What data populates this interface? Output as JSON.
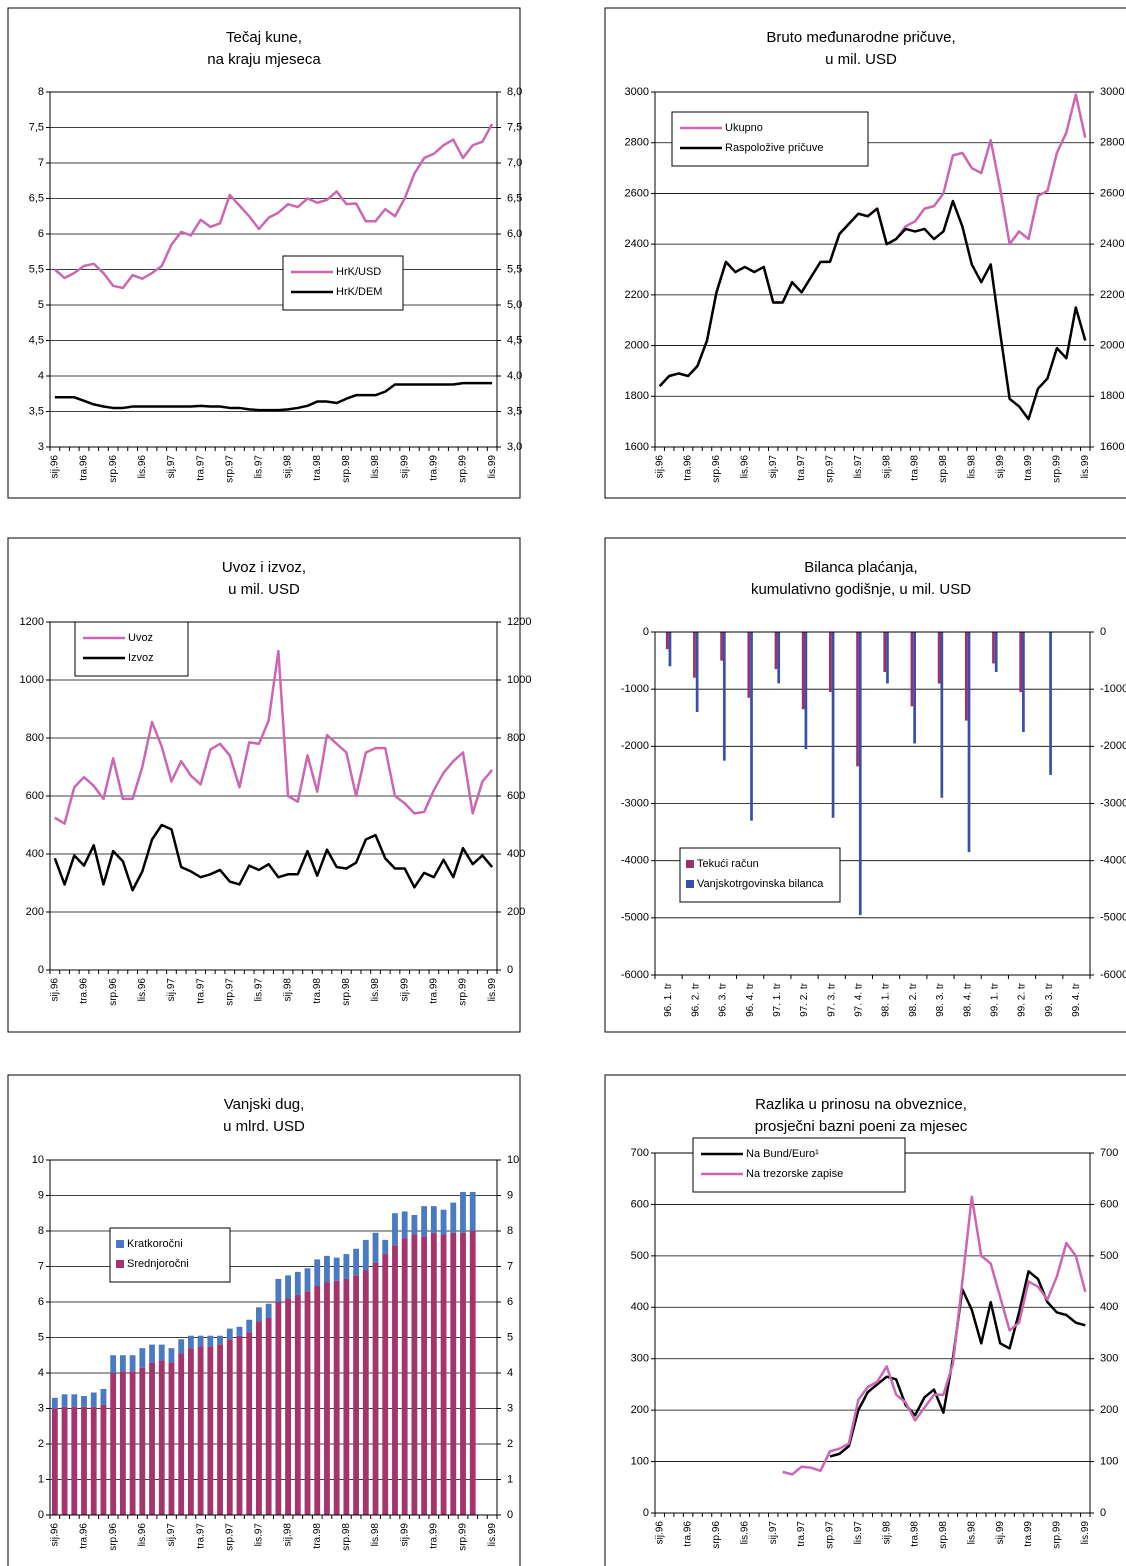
{
  "chart_data": [
    {
      "type": "line",
      "title": [
        "Tečaj kune,",
        "na kraju mjeseca"
      ],
      "categories": [
        "sij.96",
        null,
        null,
        "tra.96",
        null,
        null,
        "srp.96",
        null,
        null,
        "lis.96",
        null,
        null,
        "sij.97",
        null,
        null,
        "tra.97",
        null,
        null,
        "srp.97",
        null,
        null,
        "lis.97",
        null,
        null,
        "sij.98",
        null,
        null,
        "tra.98",
        null,
        null,
        "srp.98",
        null,
        null,
        "lis.98",
        null,
        null,
        "sij.99",
        null,
        null,
        "tra.99",
        null,
        null,
        "srp.99",
        null,
        null,
        "lis.99"
      ],
      "series": [
        {
          "name": "HrK/USD",
          "color": "#cc66b3",
          "values": [
            5.5,
            5.38,
            5.45,
            5.55,
            5.58,
            5.45,
            5.27,
            5.24,
            5.42,
            5.37,
            5.45,
            5.55,
            5.85,
            6.03,
            5.98,
            6.2,
            6.1,
            6.15,
            6.55,
            6.4,
            6.25,
            6.07,
            6.23,
            6.3,
            6.42,
            6.38,
            6.5,
            6.44,
            6.48,
            6.6,
            6.42,
            6.43,
            6.18,
            6.18,
            6.35,
            6.25,
            6.5,
            6.85,
            7.07,
            7.13,
            7.25,
            7.33,
            7.07,
            7.25,
            7.3,
            7.55
          ]
        },
        {
          "name": "HrK/DEM",
          "color": "#000000",
          "values": [
            3.7,
            3.7,
            3.7,
            3.65,
            3.6,
            3.57,
            3.55,
            3.55,
            3.57,
            3.57,
            3.57,
            3.57,
            3.57,
            3.57,
            3.57,
            3.58,
            3.57,
            3.57,
            3.55,
            3.55,
            3.53,
            3.52,
            3.52,
            3.52,
            3.53,
            3.55,
            3.58,
            3.64,
            3.64,
            3.62,
            3.68,
            3.73,
            3.73,
            3.73,
            3.78,
            3.88,
            3.88,
            3.88,
            3.88,
            3.88,
            3.88,
            3.88,
            3.9,
            3.9,
            3.9,
            3.9
          ]
        }
      ],
      "ylim": [
        3,
        8
      ],
      "yticks": [
        3,
        {
          "value": 3.5,
          "label": "3,5"
        },
        4,
        {
          "value": 4.5,
          "label": "4,5"
        },
        5,
        {
          "value": 5.5,
          "label": "5,5"
        },
        6,
        {
          "value": 6.5,
          "label": "6,5"
        },
        7,
        {
          "value": 7.5,
          "label": "7,5"
        },
        8
      ],
      "y2lim": [
        3,
        8
      ],
      "y2ticks": [
        {
          "value": 3,
          "label": "3,0"
        },
        {
          "value": 3.5,
          "label": "3,5"
        },
        {
          "value": 4,
          "label": "4,0"
        },
        {
          "value": 4.5,
          "label": "4,5"
        },
        {
          "value": 5,
          "label": "5,0"
        },
        {
          "value": 5.5,
          "label": "5,5"
        },
        {
          "value": 6,
          "label": "6,0"
        },
        {
          "value": 6.5,
          "label": "6,5"
        },
        {
          "value": 7,
          "label": "7,0"
        },
        {
          "value": 7.5,
          "label": "7,5"
        },
        {
          "value": 8,
          "label": "8,0"
        }
      ],
      "grid": true
    },
    {
      "type": "line",
      "title": [
        "Bruto međunarodne pričuve,",
        "u mil. USD"
      ],
      "categories": [
        "sij.96",
        null,
        null,
        "tra.96",
        null,
        null,
        "srp.96",
        null,
        null,
        "lis.96",
        null,
        null,
        "sij.97",
        null,
        null,
        "tra.97",
        null,
        null,
        "srp.97",
        null,
        null,
        "lis.97",
        null,
        null,
        "sij.98",
        null,
        null,
        "tra.98",
        null,
        null,
        "srp.98",
        null,
        null,
        "lis.98",
        null,
        null,
        "sij.99",
        null,
        null,
        "tra.99",
        null,
        null,
        "srp.99",
        null,
        null,
        "lis.99"
      ],
      "series": [
        {
          "name": "Ukupno",
          "color": "#cc66b3",
          "values": [
            1840,
            1880,
            1890,
            1880,
            1920,
            2020,
            2210,
            2330,
            2290,
            2310,
            2290,
            2310,
            2170,
            2170,
            2250,
            2210,
            2270,
            2330,
            2330,
            2440,
            2480,
            2520,
            2510,
            2540,
            2400,
            2420,
            2470,
            2490,
            2540,
            2550,
            2600,
            2750,
            2760,
            2700,
            2680,
            2810,
            2620,
            2400,
            2450,
            2420,
            2590,
            2610,
            2760,
            2840,
            2990,
            2820
          ]
        },
        {
          "name": "Raspoložive pričuve",
          "color": "#000000",
          "values": [
            1840,
            1880,
            1890,
            1880,
            1920,
            2020,
            2210,
            2330,
            2290,
            2310,
            2290,
            2310,
            2170,
            2170,
            2250,
            2210,
            2270,
            2330,
            2330,
            2440,
            2480,
            2520,
            2510,
            2540,
            2400,
            2420,
            2460,
            2450,
            2460,
            2420,
            2450,
            2570,
            2470,
            2320,
            2250,
            2320,
            2050,
            1790,
            1760,
            1710,
            1830,
            1870,
            1990,
            1950,
            2150,
            2020
          ]
        }
      ],
      "ylim": [
        1600,
        3000
      ],
      "yticks": [
        1600,
        1800,
        2000,
        2200,
        2400,
        2600,
        2800,
        3000
      ],
      "y2lim": [
        1600,
        3000
      ],
      "y2ticks": [
        1600,
        1800,
        2000,
        2200,
        2400,
        2600,
        2800,
        3000
      ],
      "grid": true
    },
    {
      "type": "line",
      "title": [
        "Uvoz i izvoz,",
        "u mil. USD"
      ],
      "categories": [
        "sij.96",
        null,
        null,
        "tra.96",
        null,
        null,
        "srp.96",
        null,
        null,
        "lis.96",
        null,
        null,
        "sij.97",
        null,
        null,
        "tra.97",
        null,
        null,
        "srp.97",
        null,
        null,
        "lis.97",
        null,
        null,
        "sij.98",
        null,
        null,
        "tra.98",
        null,
        null,
        "srp.98",
        null,
        null,
        "lis.98",
        null,
        null,
        "sij.99",
        null,
        null,
        "tra.99",
        null,
        null,
        "srp.99",
        null,
        null,
        "lis.99"
      ],
      "series": [
        {
          "name": "Uvoz",
          "color": "#cc66b3",
          "values": [
            525,
            505,
            630,
            665,
            635,
            590,
            730,
            590,
            590,
            700,
            855,
            770,
            650,
            720,
            670,
            640,
            760,
            780,
            740,
            630,
            785,
            780,
            860,
            1100,
            600,
            580,
            740,
            615,
            810,
            780,
            750,
            600,
            750,
            765,
            765,
            600,
            575,
            540,
            545,
            620,
            680,
            720,
            750,
            540,
            650,
            690
          ]
        },
        {
          "name": "Izvoz",
          "color": "#000000",
          "values": [
            385,
            295,
            395,
            360,
            430,
            295,
            410,
            375,
            275,
            340,
            450,
            500,
            485,
            355,
            340,
            320,
            330,
            345,
            305,
            295,
            360,
            345,
            365,
            320,
            330,
            330,
            410,
            325,
            415,
            355,
            350,
            370,
            450,
            465,
            385,
            350,
            350,
            285,
            335,
            320,
            380,
            320,
            420,
            365,
            395,
            355
          ]
        }
      ],
      "ylim": [
        0,
        1200
      ],
      "yticks": [
        0,
        200,
        400,
        600,
        800,
        1000,
        1200
      ],
      "y2lim": [
        0,
        1200
      ],
      "y2ticks": [
        0,
        200,
        400,
        600,
        800,
        1000,
        1200
      ],
      "grid": true
    },
    {
      "type": "bar",
      "title": [
        "Bilanca plaćanja,",
        "kumulativno godišnje, u mil. USD"
      ],
      "categories": [
        "96. 1. tr",
        "96. 2. tr",
        "96. 3. tr",
        "96. 4. tr",
        "97. 1. tr",
        "97. 2. tr",
        "97. 3. tr",
        "97. 4. tr",
        "98. 1. tr",
        "98. 2. tr",
        "98. 3. tr",
        "98. 4. tr",
        "99. 1. tr",
        "99. 2. tr",
        "99. 3. tr",
        "99. 4. tr"
      ],
      "series": [
        {
          "name": "Tekući račun",
          "color": "#9c2f6e",
          "values": [
            -300,
            -800,
            -500,
            -1150,
            -650,
            -1350,
            -1050,
            -2350,
            -700,
            -1300,
            -900,
            -1550,
            -550,
            -1050,
            null,
            null
          ]
        },
        {
          "name": "Vanjskotrgovinska bilanca",
          "color": "#3a4fa8",
          "values": [
            -600,
            -1400,
            -2250,
            -3300,
            -900,
            -2050,
            -3250,
            -4950,
            -900,
            -1950,
            -2900,
            -3850,
            -700,
            -1750,
            -2500,
            null
          ]
        }
      ],
      "ylim": [
        -6000,
        0
      ],
      "yticks": [
        -6000,
        -5000,
        -4000,
        -3000,
        -2000,
        -1000,
        0
      ],
      "y2lim": [
        -6000,
        0
      ],
      "y2ticks": [
        -6000,
        -5000,
        -4000,
        -3000,
        -2000,
        -1000,
        0
      ],
      "grid": true
    },
    {
      "type": "bar",
      "stacked": true,
      "title": [
        "Vanjski dug,",
        "u mlrd. USD"
      ],
      "categories": [
        "sij.96",
        null,
        null,
        "tra.96",
        null,
        null,
        "srp.96",
        null,
        null,
        "lis.96",
        null,
        null,
        "sij.97",
        null,
        null,
        "tra.97",
        null,
        null,
        "srp.97",
        null,
        null,
        "lis.97",
        null,
        null,
        "sij.98",
        null,
        null,
        "tra.98",
        null,
        null,
        "srp.98",
        null,
        null,
        "lis.98",
        null,
        null,
        "sij.99",
        null,
        null,
        "tra.99",
        null,
        null,
        "srp.99",
        null,
        null,
        "lis.99"
      ],
      "series": [
        {
          "name": "Srednjoročni",
          "color": "#a6336a",
          "values": [
            3.0,
            3.05,
            3.05,
            3.05,
            3.05,
            3.1,
            4.0,
            4.05,
            4.05,
            4.15,
            4.3,
            4.35,
            4.3,
            4.55,
            4.7,
            4.75,
            4.75,
            4.8,
            4.95,
            5.05,
            5.15,
            5.45,
            5.55,
            6.0,
            6.1,
            6.2,
            6.3,
            6.45,
            6.55,
            6.6,
            6.65,
            6.75,
            6.9,
            7.1,
            7.35,
            7.6,
            7.8,
            7.9,
            7.85,
            7.95,
            7.9,
            7.95,
            7.95,
            8.0,
            null,
            null
          ]
        },
        {
          "name": "Kratkoročni",
          "color": "#4a7bc2",
          "values": [
            0.3,
            0.35,
            0.35,
            0.3,
            0.4,
            0.45,
            0.5,
            0.45,
            0.45,
            0.55,
            0.5,
            0.45,
            0.4,
            0.4,
            0.35,
            0.3,
            0.3,
            0.25,
            0.3,
            0.25,
            0.35,
            0.4,
            0.4,
            0.65,
            0.65,
            0.65,
            0.65,
            0.75,
            0.75,
            0.65,
            0.7,
            0.75,
            0.85,
            0.85,
            0.4,
            0.9,
            0.75,
            0.55,
            0.85,
            0.75,
            0.7,
            0.85,
            1.15,
            1.1,
            null,
            null
          ]
        }
      ],
      "ylim": [
        0,
        10
      ],
      "yticks": [
        0,
        1,
        2,
        3,
        4,
        5,
        6,
        7,
        8,
        9,
        10
      ],
      "y2lim": [
        0,
        10
      ],
      "y2ticks": [
        0,
        1,
        2,
        3,
        4,
        5,
        6,
        7,
        8,
        9,
        10
      ],
      "grid": true
    },
    {
      "type": "line",
      "title": [
        "Razlika u prinosu na obveznice,",
        "prosječni bazni poeni za mjesec"
      ],
      "categories": [
        "sij.96",
        null,
        null,
        "tra.96",
        null,
        null,
        "srp.96",
        null,
        null,
        "lis.96",
        null,
        null,
        "sij.97",
        null,
        null,
        "tra.97",
        null,
        null,
        "srp.97",
        null,
        null,
        "lis.97",
        null,
        null,
        "sij.98",
        null,
        null,
        "tra.98",
        null,
        null,
        "srp.98",
        null,
        null,
        "lis.98",
        null,
        null,
        "sij.99",
        null,
        null,
        "tra.99",
        null,
        null,
        "srp.99",
        null,
        null,
        "lis.99"
      ],
      "series": [
        {
          "name": "Na Bund/Euro¹",
          "color": "#000000",
          "values": [
            null,
            null,
            null,
            null,
            null,
            null,
            null,
            null,
            null,
            null,
            null,
            null,
            null,
            null,
            null,
            null,
            null,
            null,
            110,
            115,
            130,
            200,
            235,
            250,
            265,
            260,
            210,
            190,
            225,
            240,
            195,
            300,
            435,
            395,
            330,
            410,
            330,
            320,
            390,
            470,
            455,
            410,
            390,
            385,
            370,
            365
          ]
        },
        {
          "name": "Na trezorske zapise",
          "color": "#cc66b3",
          "values": [
            null,
            null,
            null,
            null,
            null,
            null,
            null,
            null,
            null,
            null,
            null,
            null,
            null,
            80,
            75,
            90,
            88,
            82,
            120,
            125,
            135,
            220,
            245,
            255,
            285,
            230,
            215,
            180,
            205,
            230,
            230,
            290,
            450,
            615,
            500,
            485,
            420,
            355,
            370,
            450,
            440,
            415,
            460,
            525,
            500,
            430
          ]
        }
      ],
      "ylim": [
        0,
        700
      ],
      "yticks": [
        0,
        100,
        200,
        300,
        400,
        500,
        600,
        700
      ],
      "y2lim": [
        0,
        700
      ],
      "y2ticks": [
        0,
        100,
        200,
        300,
        400,
        500,
        600,
        700
      ],
      "grid": true
    }
  ]
}
